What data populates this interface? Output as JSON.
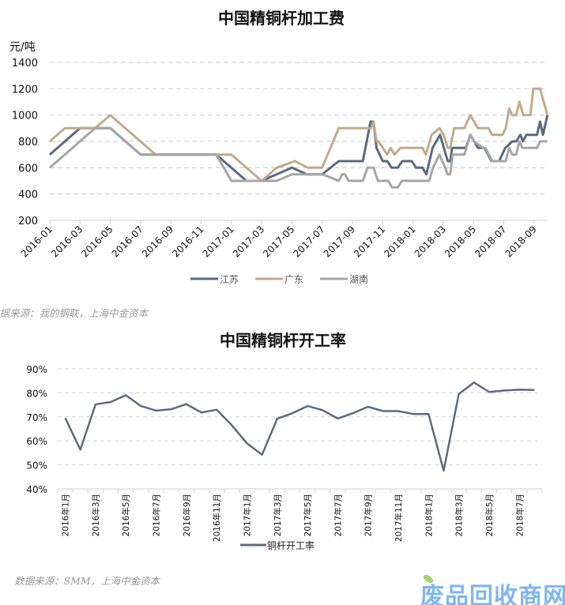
{
  "chart_data": [
    {
      "type": "line",
      "title": "中国精铜杆加工费",
      "ylabel": "元/吨",
      "ylim": [
        200,
        1400
      ],
      "yticks": [
        200,
        400,
        600,
        800,
        1000,
        1200,
        1400
      ],
      "xlim": [
        "2016-01-01",
        "2018-09-28"
      ],
      "xticks": [
        "2016-01",
        "2016-03",
        "2016-05",
        "2016-07",
        "2016-09",
        "2016-11",
        "2017-01",
        "2017-03",
        "2017-05",
        "2017-07",
        "2017-09",
        "2017-11",
        "2018-01",
        "2018-03",
        "2018-05",
        "2018-07",
        "2018-09"
      ],
      "grid": "horizontal dashed",
      "legend": "bottom",
      "series": [
        {
          "name": "江苏",
          "color": "#586a82",
          "points": [
            [
              "2016-01-01",
              700
            ],
            [
              "2016-03-01",
              900
            ],
            [
              "2016-05-01",
              900
            ],
            [
              "2016-07-01",
              700
            ],
            [
              "2016-12-01",
              700
            ],
            [
              "2017-02-01",
              500
            ],
            [
              "2017-03-01",
              500
            ],
            [
              "2017-05-01",
              600
            ],
            [
              "2017-06-01",
              550
            ],
            [
              "2017-07-01",
              550
            ],
            [
              "2017-08-04",
              650
            ],
            [
              "2017-09-22",
              650
            ],
            [
              "2017-10-07",
              950
            ],
            [
              "2017-10-13",
              950
            ],
            [
              "2017-10-19",
              750
            ],
            [
              "2017-11-01",
              650
            ],
            [
              "2017-11-10",
              650
            ],
            [
              "2017-11-19",
              600
            ],
            [
              "2017-12-01",
              600
            ],
            [
              "2017-12-10",
              650
            ],
            [
              "2017-12-29",
              650
            ],
            [
              "2018-01-07",
              600
            ],
            [
              "2018-01-20",
              600
            ],
            [
              "2018-01-28",
              550
            ],
            [
              "2018-02-10",
              750
            ],
            [
              "2018-02-25",
              850
            ],
            [
              "2018-03-10",
              650
            ],
            [
              "2018-03-15",
              650
            ],
            [
              "2018-03-19",
              750
            ],
            [
              "2018-04-16",
              750
            ],
            [
              "2018-04-25",
              850
            ],
            [
              "2018-05-10",
              750
            ],
            [
              "2018-05-23",
              750
            ],
            [
              "2018-06-07",
              650
            ],
            [
              "2018-06-22",
              650
            ],
            [
              "2018-07-04",
              750
            ],
            [
              "2018-07-18",
              800
            ],
            [
              "2018-07-26",
              800
            ],
            [
              "2018-08-04",
              850
            ],
            [
              "2018-08-09",
              800
            ],
            [
              "2018-08-16",
              850
            ],
            [
              "2018-09-07",
              850
            ],
            [
              "2018-09-13",
              950
            ],
            [
              "2018-09-19",
              850
            ],
            [
              "2018-09-28",
              1000
            ]
          ]
        },
        {
          "name": "广东",
          "color": "#c3a98a",
          "points": [
            [
              "2016-01-01",
              800
            ],
            [
              "2016-02-01",
              900
            ],
            [
              "2016-04-01",
              900
            ],
            [
              "2016-05-01",
              1000
            ],
            [
              "2016-08-01",
              700
            ],
            [
              "2017-01-01",
              700
            ],
            [
              "2017-03-01",
              500
            ],
            [
              "2017-04-01",
              600
            ],
            [
              "2017-05-07",
              650
            ],
            [
              "2017-06-03",
              600
            ],
            [
              "2017-07-01",
              600
            ],
            [
              "2017-08-04",
              900
            ],
            [
              "2017-10-08",
              900
            ],
            [
              "2017-10-13",
              950
            ],
            [
              "2017-10-19",
              800
            ],
            [
              "2017-10-23",
              800
            ],
            [
              "2017-11-10",
              700
            ],
            [
              "2017-11-17",
              750
            ],
            [
              "2017-11-25",
              700
            ],
            [
              "2017-12-06",
              750
            ],
            [
              "2018-01-20",
              750
            ],
            [
              "2018-01-27",
              700
            ],
            [
              "2018-02-08",
              850
            ],
            [
              "2018-02-24",
              900
            ],
            [
              "2018-03-02",
              850
            ],
            [
              "2018-03-10",
              750
            ],
            [
              "2018-03-15",
              750
            ],
            [
              "2018-03-23",
              900
            ],
            [
              "2018-04-13",
              900
            ],
            [
              "2018-04-25",
              1000
            ],
            [
              "2018-05-10",
              900
            ],
            [
              "2018-06-01",
              900
            ],
            [
              "2018-06-08",
              850
            ],
            [
              "2018-06-29",
              850
            ],
            [
              "2018-07-05",
              900
            ],
            [
              "2018-07-12",
              1050
            ],
            [
              "2018-07-18",
              1000
            ],
            [
              "2018-07-26",
              1000
            ],
            [
              "2018-08-02",
              1100
            ],
            [
              "2018-08-10",
              1000
            ],
            [
              "2018-08-24",
              1000
            ],
            [
              "2018-08-30",
              1200
            ],
            [
              "2018-09-13",
              1200
            ],
            [
              "2018-09-28",
              1000
            ]
          ]
        },
        {
          "name": "湖南",
          "color": "#a6a6a6",
          "points": [
            [
              "2016-01-01",
              600
            ],
            [
              "2016-03-01",
              800
            ],
            [
              "2016-04-01",
              900
            ],
            [
              "2016-05-01",
              900
            ],
            [
              "2016-07-01",
              700
            ],
            [
              "2016-12-01",
              700
            ],
            [
              "2017-01-01",
              500
            ],
            [
              "2017-04-01",
              500
            ],
            [
              "2017-05-01",
              550
            ],
            [
              "2017-07-01",
              550
            ],
            [
              "2017-08-04",
              500
            ],
            [
              "2017-08-11",
              550
            ],
            [
              "2017-08-16",
              550
            ],
            [
              "2017-08-24",
              500
            ],
            [
              "2017-09-22",
              500
            ],
            [
              "2017-10-01",
              600
            ],
            [
              "2017-10-13",
              600
            ],
            [
              "2017-10-22",
              500
            ],
            [
              "2017-11-12",
              500
            ],
            [
              "2017-11-20",
              450
            ],
            [
              "2017-12-01",
              450
            ],
            [
              "2017-12-09",
              500
            ],
            [
              "2018-02-03",
              500
            ],
            [
              "2018-02-11",
              600
            ],
            [
              "2018-02-24",
              700
            ],
            [
              "2018-03-05",
              600
            ],
            [
              "2018-03-10",
              550
            ],
            [
              "2018-03-15",
              550
            ],
            [
              "2018-03-20",
              700
            ],
            [
              "2018-04-13",
              700
            ],
            [
              "2018-04-25",
              850
            ],
            [
              "2018-05-02",
              800
            ],
            [
              "2018-05-20",
              750
            ],
            [
              "2018-05-25",
              750
            ],
            [
              "2018-06-08",
              650
            ],
            [
              "2018-07-05",
              650
            ],
            [
              "2018-07-12",
              750
            ],
            [
              "2018-07-18",
              700
            ],
            [
              "2018-07-26",
              700
            ],
            [
              "2018-08-02",
              800
            ],
            [
              "2018-08-08",
              750
            ],
            [
              "2018-09-07",
              750
            ],
            [
              "2018-09-13",
              800
            ],
            [
              "2018-09-28",
              800
            ]
          ]
        }
      ],
      "source": "数据来源：我的钢联，上海中金资本"
    },
    {
      "type": "line",
      "title": "中国精铜杆开工率",
      "ylim": [
        40,
        90
      ],
      "yticks": [
        "40%",
        "50%",
        "60%",
        "70%",
        "80%",
        "90%"
      ],
      "categories": [
        "2016年1月",
        "2016年2月",
        "2016年3月",
        "2016年4月",
        "2016年5月",
        "2016年6月",
        "2016年7月",
        "2016年8月",
        "2016年9月",
        "2016年10月",
        "2016年11月",
        "2016年12月",
        "2017年1月",
        "2017年2月",
        "2017年3月",
        "2017年4月",
        "2017年5月",
        "2017年6月",
        "2017年7月",
        "2017年8月",
        "2017年9月",
        "2017年10月",
        "2017年11月",
        "2017年12月",
        "2018年1月",
        "2018年2月",
        "2018年3月",
        "2018年4月",
        "2018年5月",
        "2018年6月",
        "2018年7月",
        "2018年8月"
      ],
      "category_labels_shown": [
        "2016年1月",
        "2016年3月",
        "2016年5月",
        "2016年7月",
        "2016年9月",
        "2016年11月",
        "2017年1月",
        "2017年3月",
        "2017年5月",
        "2017年7月",
        "2017年9月",
        "2017年11月",
        "2018年1月",
        "2018年3月",
        "2018年5月",
        "2018年7月"
      ],
      "grid": "horizontal dashed",
      "legend": "bottom",
      "series": [
        {
          "name": "铜杆开工率",
          "color": "#5f6b7c",
          "values": [
            69.5,
            56.3,
            75.2,
            76.2,
            79.0,
            74.5,
            72.6,
            73.2,
            75.3,
            71.8,
            73.0,
            66.5,
            59.0,
            54.2,
            69.2,
            71.5,
            74.5,
            72.8,
            69.3,
            71.5,
            74.2,
            72.4,
            72.4,
            71.2,
            71.2,
            47.6,
            79.5,
            84.3,
            80.4,
            81.0,
            81.3,
            81.2
          ]
        }
      ],
      "source": "数据来源：SMM，上海中金资本"
    }
  ],
  "watermark": "废品回收商网"
}
